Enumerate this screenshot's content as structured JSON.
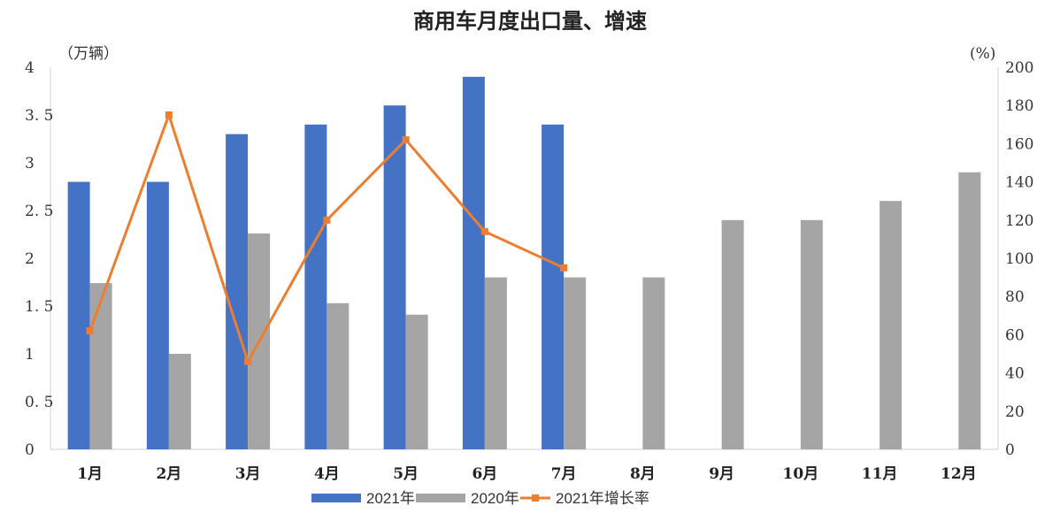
{
  "chart_data": {
    "type": "bar",
    "title": "商用车月度出口量、增速",
    "y_left_unit": "（万辆）",
    "y_right_unit": "(%)",
    "categories": [
      "1月",
      "2月",
      "3月",
      "4月",
      "5月",
      "6月",
      "7月",
      "8月",
      "9月",
      "10月",
      "11月",
      "12月"
    ],
    "y_left_ticks": [
      "0",
      "0. 5",
      "1",
      "1. 5",
      "2",
      "2. 5",
      "3",
      "3. 5",
      "4"
    ],
    "y_right_ticks": [
      "0",
      "20",
      "40",
      "60",
      "80",
      "100",
      "120",
      "140",
      "160",
      "180",
      "200"
    ],
    "ylim_left": [
      0,
      4
    ],
    "ylim_right": [
      0,
      200
    ],
    "series": [
      {
        "name": "2021年",
        "type": "bar",
        "axis": "left",
        "color": "#4472c4",
        "values": [
          2.8,
          2.8,
          3.3,
          3.4,
          3.6,
          3.9,
          3.4,
          null,
          null,
          null,
          null,
          null
        ]
      },
      {
        "name": "2020年",
        "type": "bar",
        "axis": "left",
        "color": "#a5a5a5",
        "values": [
          1.74,
          1.0,
          2.26,
          1.53,
          1.41,
          1.8,
          1.8,
          1.8,
          2.4,
          2.4,
          2.6,
          2.9
        ]
      },
      {
        "name": "2021年增长率",
        "type": "line",
        "axis": "right",
        "color": "#ed7d31",
        "values": [
          62,
          175,
          46,
          120,
          162,
          114,
          95,
          null,
          null,
          null,
          null,
          null
        ]
      }
    ],
    "legend_position": "bottom",
    "grid": false
  }
}
